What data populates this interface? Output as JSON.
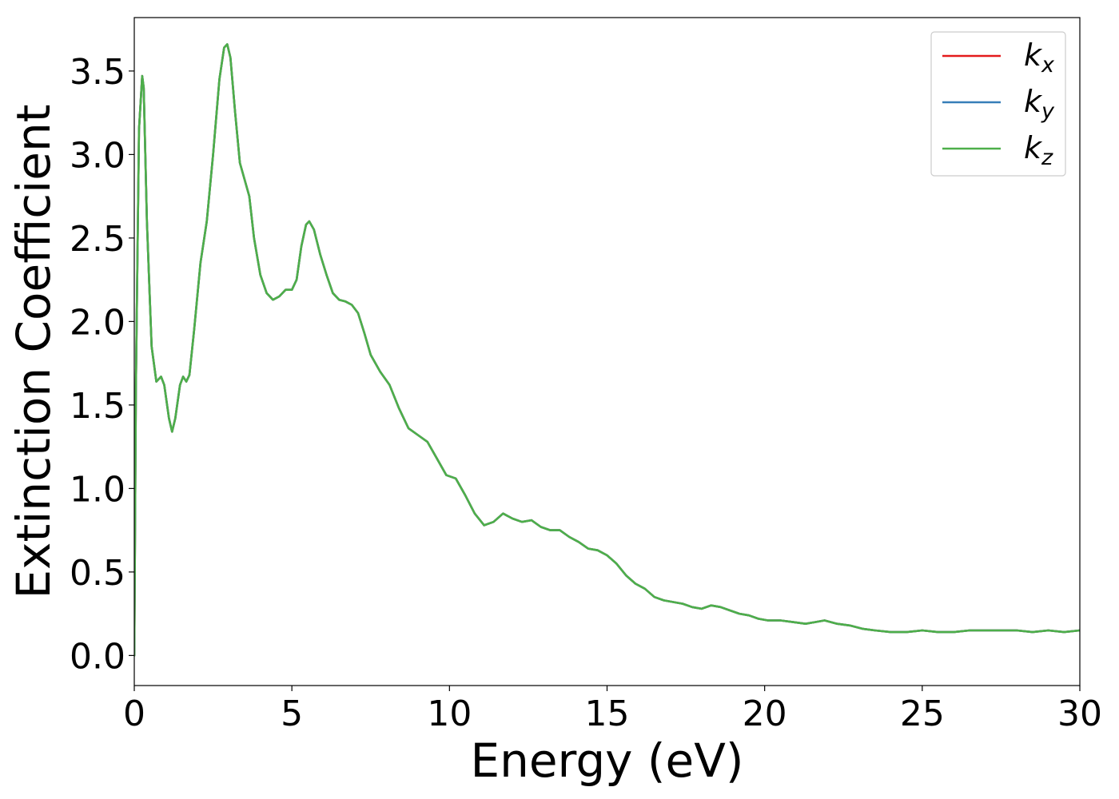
{
  "chart_data": {
    "type": "line",
    "xlabel": "Energy (eV)",
    "ylabel": "Extinction Coefficient",
    "xlim": [
      0,
      30
    ],
    "ylim": [
      -0.18,
      3.82
    ],
    "xticks": [
      0,
      5,
      10,
      15,
      20,
      25,
      30
    ],
    "xtick_labels": [
      "0",
      "5",
      "10",
      "15",
      "20",
      "25",
      "30"
    ],
    "yticks": [
      0.0,
      0.5,
      1.0,
      1.5,
      2.0,
      2.5,
      3.0,
      3.5
    ],
    "ytick_labels": [
      "0.0",
      "0.5",
      "1.0",
      "1.5",
      "2.0",
      "2.5",
      "3.0",
      "3.5"
    ],
    "grid": false,
    "legend_position": "top-right",
    "legend": [
      {
        "base": "k",
        "sub": "x",
        "color": "#e41a1c"
      },
      {
        "base": "k",
        "sub": "y",
        "color": "#377eb8"
      },
      {
        "base": "k",
        "sub": "z",
        "color": "#4daf4a"
      }
    ],
    "x": [
      0,
      0.05,
      0.15,
      0.25,
      0.3,
      0.4,
      0.55,
      0.7,
      0.85,
      0.95,
      1.1,
      1.2,
      1.3,
      1.45,
      1.55,
      1.65,
      1.75,
      1.9,
      2.1,
      2.3,
      2.5,
      2.7,
      2.85,
      2.95,
      3.05,
      3.2,
      3.35,
      3.5,
      3.65,
      3.8,
      4.0,
      4.2,
      4.4,
      4.6,
      4.8,
      5.0,
      5.15,
      5.3,
      5.45,
      5.55,
      5.7,
      5.9,
      6.1,
      6.3,
      6.5,
      6.7,
      6.9,
      7.1,
      7.3,
      7.5,
      7.8,
      8.1,
      8.4,
      8.7,
      9.0,
      9.3,
      9.6,
      9.9,
      10.2,
      10.5,
      10.8,
      11.1,
      11.4,
      11.7,
      12.0,
      12.3,
      12.6,
      12.9,
      13.2,
      13.5,
      13.8,
      14.1,
      14.4,
      14.7,
      15.0,
      15.3,
      15.6,
      15.9,
      16.2,
      16.5,
      16.8,
      17.1,
      17.4,
      17.7,
      18.0,
      18.3,
      18.6,
      18.9,
      19.2,
      19.5,
      19.8,
      20.1,
      20.5,
      20.9,
      21.3,
      21.6,
      21.9,
      22.3,
      22.7,
      23.1,
      23.5,
      24.0,
      24.5,
      25.0,
      25.5,
      26.0,
      26.5,
      27.0,
      27.5,
      28.0,
      28.5,
      29.0,
      29.5,
      30.0
    ],
    "series": [
      {
        "color": "#e41a1c",
        "values": [
          0.0,
          1.6,
          3.15,
          3.47,
          3.4,
          2.6,
          1.85,
          1.64,
          1.67,
          1.62,
          1.42,
          1.34,
          1.42,
          1.62,
          1.67,
          1.64,
          1.68,
          1.95,
          2.35,
          2.6,
          3.0,
          3.45,
          3.64,
          3.66,
          3.58,
          3.25,
          2.95,
          2.85,
          2.75,
          2.5,
          2.28,
          2.17,
          2.13,
          2.15,
          2.19,
          2.19,
          2.25,
          2.45,
          2.58,
          2.6,
          2.55,
          2.4,
          2.28,
          2.17,
          2.13,
          2.12,
          2.1,
          2.05,
          1.93,
          1.8,
          1.7,
          1.62,
          1.48,
          1.36,
          1.32,
          1.28,
          1.18,
          1.08,
          1.06,
          0.96,
          0.85,
          0.78,
          0.8,
          0.85,
          0.82,
          0.8,
          0.81,
          0.77,
          0.75,
          0.75,
          0.71,
          0.68,
          0.64,
          0.63,
          0.6,
          0.55,
          0.48,
          0.43,
          0.4,
          0.35,
          0.33,
          0.32,
          0.31,
          0.29,
          0.28,
          0.3,
          0.29,
          0.27,
          0.25,
          0.24,
          0.22,
          0.21,
          0.21,
          0.2,
          0.19,
          0.2,
          0.21,
          0.19,
          0.18,
          0.16,
          0.15,
          0.14,
          0.14,
          0.15,
          0.14,
          0.14,
          0.15,
          0.15,
          0.15,
          0.15,
          0.14,
          0.15,
          0.14,
          0.15
        ]
      },
      {
        "color": "#377eb8",
        "values": [
          0.0,
          1.6,
          3.15,
          3.47,
          3.4,
          2.6,
          1.85,
          1.64,
          1.67,
          1.62,
          1.42,
          1.34,
          1.42,
          1.62,
          1.67,
          1.64,
          1.68,
          1.95,
          2.35,
          2.6,
          3.0,
          3.45,
          3.64,
          3.66,
          3.58,
          3.25,
          2.95,
          2.85,
          2.75,
          2.5,
          2.28,
          2.17,
          2.13,
          2.15,
          2.19,
          2.19,
          2.25,
          2.45,
          2.58,
          2.6,
          2.55,
          2.4,
          2.28,
          2.17,
          2.13,
          2.12,
          2.1,
          2.05,
          1.93,
          1.8,
          1.7,
          1.62,
          1.48,
          1.36,
          1.32,
          1.28,
          1.18,
          1.08,
          1.06,
          0.96,
          0.85,
          0.78,
          0.8,
          0.85,
          0.82,
          0.8,
          0.81,
          0.77,
          0.75,
          0.75,
          0.71,
          0.68,
          0.64,
          0.63,
          0.6,
          0.55,
          0.48,
          0.43,
          0.4,
          0.35,
          0.33,
          0.32,
          0.31,
          0.29,
          0.28,
          0.3,
          0.29,
          0.27,
          0.25,
          0.24,
          0.22,
          0.21,
          0.21,
          0.2,
          0.19,
          0.2,
          0.21,
          0.19,
          0.18,
          0.16,
          0.15,
          0.14,
          0.14,
          0.15,
          0.14,
          0.14,
          0.15,
          0.15,
          0.15,
          0.15,
          0.14,
          0.15,
          0.14,
          0.15
        ]
      },
      {
        "color": "#4daf4a",
        "values": [
          0.0,
          1.6,
          3.15,
          3.47,
          3.4,
          2.6,
          1.85,
          1.64,
          1.67,
          1.62,
          1.42,
          1.34,
          1.42,
          1.62,
          1.67,
          1.64,
          1.68,
          1.95,
          2.35,
          2.6,
          3.0,
          3.45,
          3.64,
          3.66,
          3.58,
          3.25,
          2.95,
          2.85,
          2.75,
          2.5,
          2.28,
          2.17,
          2.13,
          2.15,
          2.19,
          2.19,
          2.25,
          2.45,
          2.58,
          2.6,
          2.55,
          2.4,
          2.28,
          2.17,
          2.13,
          2.12,
          2.1,
          2.05,
          1.93,
          1.8,
          1.7,
          1.62,
          1.48,
          1.36,
          1.32,
          1.28,
          1.18,
          1.08,
          1.06,
          0.96,
          0.85,
          0.78,
          0.8,
          0.85,
          0.82,
          0.8,
          0.81,
          0.77,
          0.75,
          0.75,
          0.71,
          0.68,
          0.64,
          0.63,
          0.6,
          0.55,
          0.48,
          0.43,
          0.4,
          0.35,
          0.33,
          0.32,
          0.31,
          0.29,
          0.28,
          0.3,
          0.29,
          0.27,
          0.25,
          0.24,
          0.22,
          0.21,
          0.21,
          0.2,
          0.19,
          0.2,
          0.21,
          0.19,
          0.18,
          0.16,
          0.15,
          0.14,
          0.14,
          0.15,
          0.14,
          0.14,
          0.15,
          0.15,
          0.15,
          0.15,
          0.14,
          0.15,
          0.14,
          0.15
        ]
      }
    ]
  }
}
